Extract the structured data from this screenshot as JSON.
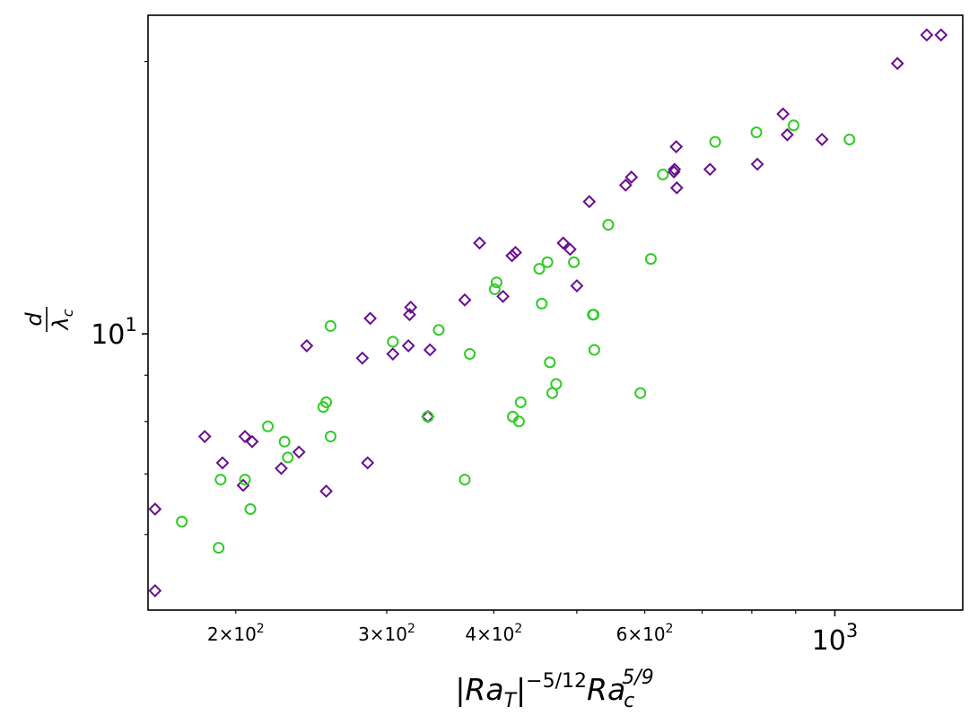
{
  "chart_data": {
    "type": "scatter",
    "xscale": "log",
    "yscale": "log",
    "xlim": [
      158,
      1410
    ],
    "ylim": [
      4.95,
      22.5
    ],
    "xlabel": {
      "base": "|Ra",
      "sub1": "T",
      "mid": "|",
      "sup1": "−5/12",
      "base2": "Ra",
      "sub2": "c",
      "sup2": "5/9"
    },
    "ylabel": {
      "num": "d",
      "den_base": "λ",
      "den_sub": "c"
    },
    "x_major_ticks": [
      {
        "value": 1000,
        "base": "10",
        "exp": "3"
      }
    ],
    "x_minor_ticks": [
      {
        "value": 200,
        "mant": "2",
        "base": "10",
        "exp": "2"
      },
      {
        "value": 300,
        "mant": "3",
        "base": "10",
        "exp": "2"
      },
      {
        "value": 400,
        "mant": "4",
        "base": "10",
        "exp": "2"
      },
      {
        "value": 600,
        "mant": "6",
        "base": "10",
        "exp": "2"
      }
    ],
    "x_minor_unlabeled": [
      500,
      700,
      800,
      900
    ],
    "y_major_ticks": [
      {
        "value": 10,
        "base": "10",
        "exp": "1"
      }
    ],
    "y_minor_unlabeled": [
      6,
      7,
      8,
      9,
      20
    ],
    "grid": false,
    "legend": "none",
    "series": [
      {
        "marker": "diamond",
        "color": "#6a0d8f",
        "points": [
          [
            161,
            5.2
          ],
          [
            161,
            6.4
          ],
          [
            184,
            7.7
          ],
          [
            193,
            7.2
          ],
          [
            204,
            6.8
          ],
          [
            205,
            7.7
          ],
          [
            209,
            7.6
          ],
          [
            226,
            7.1
          ],
          [
            237,
            7.4
          ],
          [
            242,
            9.7
          ],
          [
            255,
            6.7
          ],
          [
            281,
            9.4
          ],
          [
            285,
            7.2
          ],
          [
            287,
            10.4
          ],
          [
            305,
            9.5
          ],
          [
            318,
            9.7
          ],
          [
            319,
            10.5
          ],
          [
            320,
            10.7
          ],
          [
            335,
            8.1
          ],
          [
            337,
            9.6
          ],
          [
            370,
            10.9
          ],
          [
            385,
            12.6
          ],
          [
            410,
            11.0
          ],
          [
            420,
            12.2
          ],
          [
            424,
            12.3
          ],
          [
            482,
            12.6
          ],
          [
            491,
            12.4
          ],
          [
            500,
            11.3
          ],
          [
            517,
            14.0
          ],
          [
            570,
            14.6
          ],
          [
            579,
            14.9
          ],
          [
            649,
            15.1
          ],
          [
            650,
            15.2
          ],
          [
            653,
            16.1
          ],
          [
            654,
            14.5
          ],
          [
            715,
            15.2
          ],
          [
            812,
            15.4
          ],
          [
            870,
            17.5
          ],
          [
            880,
            16.6
          ],
          [
            966,
            16.4
          ],
          [
            1183,
            19.9
          ],
          [
            1280,
            21.4
          ],
          [
            1330,
            21.4
          ]
        ]
      },
      {
        "marker": "circle",
        "color": "#2ecc24",
        "points": [
          [
            173,
            6.2
          ],
          [
            191,
            5.8
          ],
          [
            192,
            6.9
          ],
          [
            205,
            6.9
          ],
          [
            208,
            6.4
          ],
          [
            218,
            7.9
          ],
          [
            228,
            7.6
          ],
          [
            230,
            7.3
          ],
          [
            253,
            8.3
          ],
          [
            255,
            8.4
          ],
          [
            258,
            7.7
          ],
          [
            258,
            10.2
          ],
          [
            305,
            9.8
          ],
          [
            335,
            8.1
          ],
          [
            345,
            10.1
          ],
          [
            370,
            6.9
          ],
          [
            375,
            9.5
          ],
          [
            401,
            11.2
          ],
          [
            403,
            11.4
          ],
          [
            421,
            8.1
          ],
          [
            428,
            8.0
          ],
          [
            430,
            8.4
          ],
          [
            452,
            11.8
          ],
          [
            455,
            10.8
          ],
          [
            462,
            12.0
          ],
          [
            465,
            9.3
          ],
          [
            468,
            8.6
          ],
          [
            473,
            8.8
          ],
          [
            496,
            12.0
          ],
          [
            522,
            10.5
          ],
          [
            523,
            10.5
          ],
          [
            524,
            9.6
          ],
          [
            544,
            13.2
          ],
          [
            593,
            8.6
          ],
          [
            610,
            12.1
          ],
          [
            630,
            15.0
          ],
          [
            725,
            16.3
          ],
          [
            810,
            16.7
          ],
          [
            895,
            17.0
          ],
          [
            1040,
            16.4
          ]
        ]
      }
    ]
  }
}
